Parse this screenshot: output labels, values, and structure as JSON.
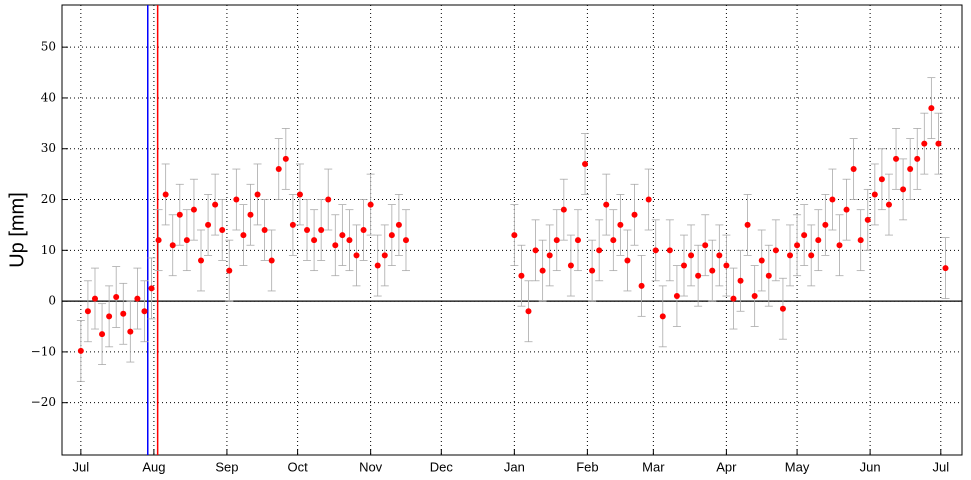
{
  "chart_data": {
    "type": "scatter",
    "ylabel": "Up [mm]",
    "xlim": [
      -8,
      374
    ],
    "ylim": [
      -30.3,
      58.3
    ],
    "xticks": [
      {
        "value": 0,
        "label": "Jul"
      },
      {
        "value": 31,
        "label": "Aug"
      },
      {
        "value": 62,
        "label": "Sep"
      },
      {
        "value": 92,
        "label": "Oct"
      },
      {
        "value": 123,
        "label": "Nov"
      },
      {
        "value": 153,
        "label": "Dec"
      },
      {
        "value": 184,
        "label": "Jan"
      },
      {
        "value": 215,
        "label": "Feb"
      },
      {
        "value": 243,
        "label": "Mar"
      },
      {
        "value": 274,
        "label": "Apr"
      },
      {
        "value": 304,
        "label": "May"
      },
      {
        "value": 335,
        "label": "Jun"
      },
      {
        "value": 365,
        "label": "Jul"
      }
    ],
    "yticks": [
      {
        "value": -20,
        "label": "−20"
      },
      {
        "value": -10,
        "label": "−10"
      },
      0,
      10,
      20,
      30,
      40,
      50
    ],
    "grid": true,
    "vlines": [
      {
        "x": 28.4,
        "color": "#0000ff"
      },
      {
        "x": 32.6,
        "color": "#ff0000"
      }
    ],
    "series": [
      {
        "color": "#ff0000",
        "yerr": 6,
        "x": [
          0,
          3,
          6,
          9,
          12,
          15,
          18,
          21,
          24,
          27,
          30,
          33,
          36,
          39,
          42,
          45,
          48,
          51,
          54,
          57,
          60,
          63,
          66,
          69,
          72,
          75,
          78,
          81,
          84,
          87,
          90,
          93,
          96,
          99,
          102,
          105,
          108,
          111,
          114,
          117,
          120,
          123,
          126,
          129,
          132,
          135,
          138,
          184,
          187,
          190,
          193,
          196,
          199,
          202,
          205,
          208,
          211,
          214,
          217,
          220,
          223,
          226,
          229,
          232,
          235,
          238,
          241,
          244,
          247,
          250,
          253,
          256,
          259,
          262,
          265,
          268,
          271,
          274,
          277,
          280,
          283,
          286,
          289,
          292,
          295,
          298,
          301,
          304,
          307,
          310,
          313,
          316,
          319,
          322,
          325,
          328,
          331,
          334,
          337,
          340,
          343,
          346,
          349,
          352,
          355,
          358,
          361,
          364,
          367
        ],
        "values": [
          -9.8,
          -2,
          0.5,
          -6.5,
          -3,
          0.8,
          -2.5,
          -6,
          0.5,
          -2,
          2.5,
          12,
          21,
          11,
          17,
          12,
          18,
          8,
          15,
          19,
          14,
          6,
          20,
          13,
          17,
          21,
          14,
          8,
          26,
          28,
          15,
          21,
          14,
          12,
          14,
          20,
          11,
          13,
          12,
          9,
          14,
          19,
          7,
          9,
          13,
          15,
          12,
          13,
          5,
          -2,
          10,
          6,
          9,
          12,
          18,
          7,
          12,
          27,
          6,
          10,
          19,
          12,
          15,
          8,
          17,
          3,
          20,
          10,
          -3,
          10,
          1,
          7,
          9,
          5,
          11,
          6,
          9,
          7,
          0.5,
          4,
          15,
          1,
          8,
          5,
          10,
          -1.5,
          9,
          11,
          13,
          9,
          12,
          15,
          20,
          11,
          18,
          26,
          12,
          16,
          21,
          24,
          19,
          28,
          22,
          26,
          28,
          31,
          38,
          31,
          6.5
        ]
      }
    ]
  }
}
